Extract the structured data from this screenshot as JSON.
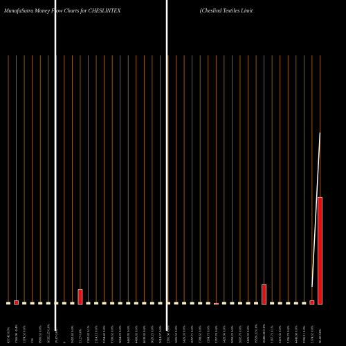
{
  "chart_data": {
    "type": "bar",
    "title": "MunafaSutra  Money Flow  Charts for CHESLINTEX",
    "subtitle": "(Cheslind Textiles Limit",
    "categories": [
      "457.42 0.0%",
      "1265.90 -0.4%",
      "1374.55 0.0%",
      "126",
      "9985.65 0.0%",
      "10352.25 0.0%",
      "19.87 0.0%",
      "0",
      "2602.45 0.0%",
      "53.27 0.0%",
      "2282.85 0.1%",
      "2314.15 0.0%",
      "2554.45 0.0%",
      "9700.62 0.0%",
      "5064.25 0.0%",
      "8462.93 0.0%",
      "4460.83 0.0%",
      "4630.85 0.0%",
      "3020.23 0.0%",
      "2614.07 0.0%",
      "2201.50 0.0%",
      "1805.52 0.0%",
      "2426.35 0.0%",
      "1057.71 0.0%",
      "2788.62 0.0%",
      "1204.75 0.0%",
      "2257.70 0.0%",
      "1420.96 0.0%",
      "2850.25 0.0%",
      "2602.70 0.0%",
      "2425.32 0.0%",
      "19526.32 0.0%",
      "18436.00 0.0%",
      "3167.73 0.1%",
      "2472.52 0.0%",
      "2196.78 0.0%",
      "4446.08 0.0%",
      "2590.11 0.0%",
      "2174.62 0.0%",
      "30.60 0.0%"
    ],
    "values": [
      1,
      1.5,
      1,
      1,
      1,
      1,
      1,
      1,
      1,
      6,
      1,
      1,
      1,
      1,
      1,
      1,
      1,
      1,
      1,
      1,
      1,
      1,
      1,
      1,
      1,
      1,
      0.5,
      1,
      1,
      1,
      1,
      1,
      8,
      1,
      1,
      1,
      1,
      1,
      1.5,
      43
    ],
    "bar_colors": [
      "#f5f0c8",
      "#e01010",
      "#f5f0c8",
      "#f5f0c8",
      "#f5f0c8",
      "#f5f0c8",
      "#f5f0c8",
      "#f5f0c8",
      "#f5f0c8",
      "#e01010",
      "#f5f0c8",
      "#f5f0c8",
      "#f5f0c8",
      "#f5f0c8",
      "#f5f0c8",
      "#f5f0c8",
      "#f5f0c8",
      "#f5f0c8",
      "#f5f0c8",
      "#f5f0c8",
      "#f5f0c8",
      "#f5f0c8",
      "#f5f0c8",
      "#f5f0c8",
      "#f5f0c8",
      "#f5f0c8",
      "#e01010",
      "#f5f0c8",
      "#f5f0c8",
      "#f5f0c8",
      "#f5f0c8",
      "#f5f0c8",
      "#e01010",
      "#f5f0c8",
      "#f5f0c8",
      "#f5f0c8",
      "#f5f0c8",
      "#f5f0c8",
      "#e01010",
      "#e01010"
    ],
    "line": {
      "color": "#ffffff",
      "values": [
        null,
        null,
        null,
        null,
        null,
        null,
        null,
        null,
        null,
        null,
        null,
        null,
        null,
        null,
        null,
        null,
        null,
        null,
        null,
        null,
        null,
        null,
        null,
        null,
        null,
        null,
        null,
        null,
        null,
        null,
        null,
        null,
        null,
        null,
        null,
        null,
        null,
        null,
        7,
        69
      ]
    },
    "grid_color": "#b8700a",
    "marker_color": "#ffffff",
    "ylim": [
      0,
      100
    ]
  }
}
